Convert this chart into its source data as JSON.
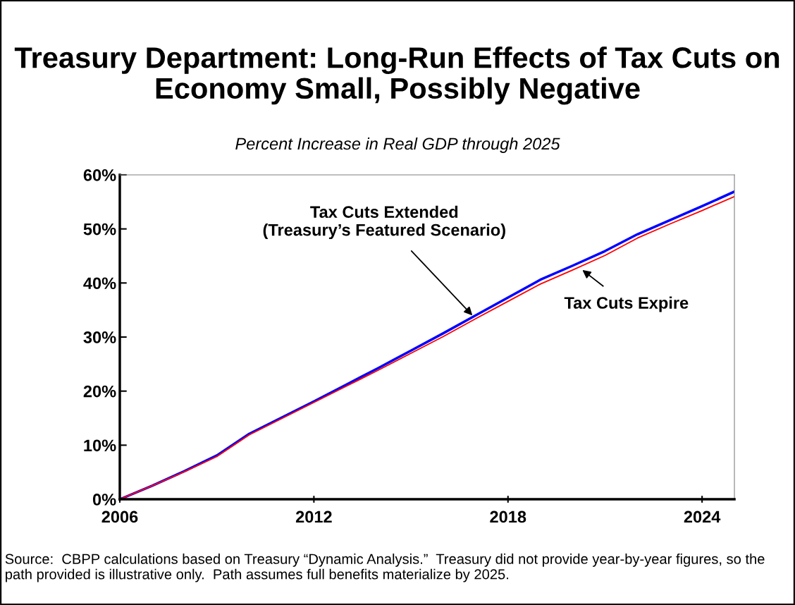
{
  "chart_data": {
    "type": "line",
    "title": "Treasury Department: Long-Run Effects of Tax Cuts on Economy Small, Possibly Negative",
    "subtitle": "Percent Increase in Real GDP through 2025",
    "x": [
      2006,
      2007,
      2008,
      2009,
      2010,
      2011,
      2012,
      2013,
      2014,
      2015,
      2016,
      2017,
      2018,
      2019,
      2020,
      2021,
      2022,
      2023,
      2024,
      2025
    ],
    "series": [
      {
        "color": "#0000ff",
        "values": [
          0,
          2.5,
          5.2,
          8.1,
          12.1,
          15.1,
          18.1,
          21.2,
          24.3,
          27.5,
          30.7,
          34.0,
          37.3,
          40.6,
          43.2,
          45.9,
          49.0,
          51.6,
          54.2,
          56.9
        ]
      },
      {
        "color": "#ff0000",
        "values": [
          0,
          2.5,
          5.1,
          7.9,
          11.9,
          14.9,
          17.9,
          20.9,
          23.9,
          27.0,
          30.1,
          33.4,
          36.6,
          39.8,
          42.4,
          45.1,
          48.3,
          50.9,
          53.4,
          56.0
        ]
      }
    ],
    "xlim": [
      2006,
      2025
    ],
    "xticks": [
      2006,
      2012,
      2018,
      2024
    ],
    "ylim": [
      0,
      60
    ],
    "yticks": [
      {
        "value": 0,
        "label": "0%"
      },
      {
        "value": 10,
        "label": "10%"
      },
      {
        "value": 20,
        "label": "20%"
      },
      {
        "value": 30,
        "label": "30%"
      },
      {
        "value": 40,
        "label": "40%"
      },
      {
        "value": 50,
        "label": "50%"
      },
      {
        "value": 60,
        "label": "60%"
      }
    ],
    "grid": false,
    "legend": false,
    "marker": "none",
    "line_style": "solid",
    "annotations": [
      {
        "text": "Tax Cuts Extended\n(Treasury’s Featured Scenario)",
        "x": 2016.9,
        "y": 34.0
      },
      {
        "text": "Tax Cuts Expire",
        "x": 2020.3,
        "y": 42.4
      },
      "Source:  CBPP calculations based on Treasury “Dynamic Analysis.”  Treasury did not provide year-by-year figures, so the path provided is illustrative only.  Path assumes full benefits materialize by 2025."
    ]
  }
}
